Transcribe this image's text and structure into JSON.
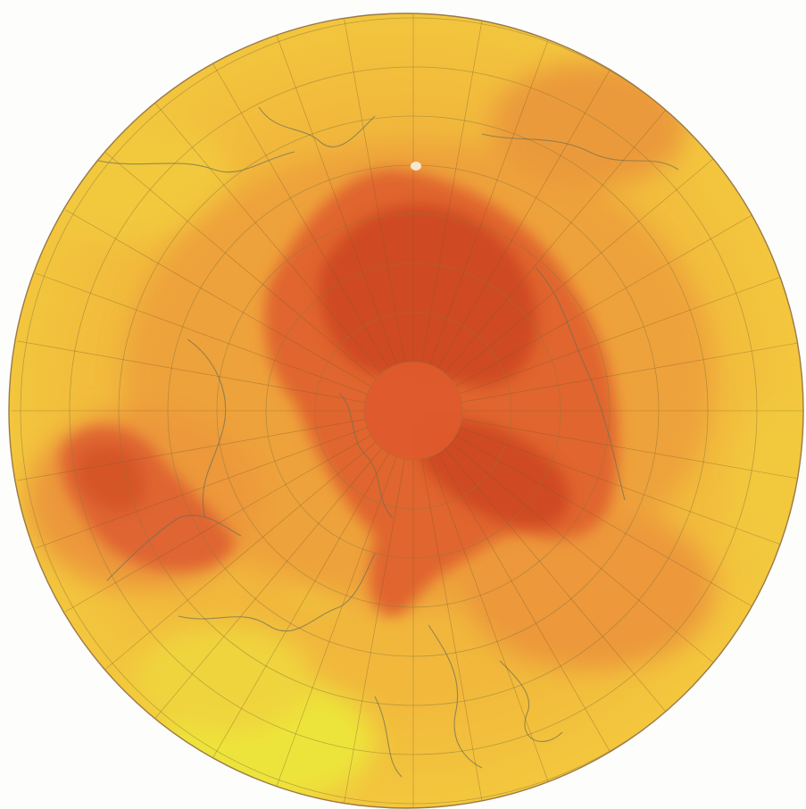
{
  "map": {
    "projection": "polar-azimuthal-north",
    "palette": {
      "low": "#f2e23a",
      "mid_low": "#f3c53e",
      "mid": "#f0a23c",
      "mid_high": "#e9823a",
      "high": "#dd5a2c",
      "peak": "#c6401f",
      "coastline": "#7a7a55",
      "graticule": "#8c7a3c",
      "rim": "#9a7a46"
    }
  }
}
